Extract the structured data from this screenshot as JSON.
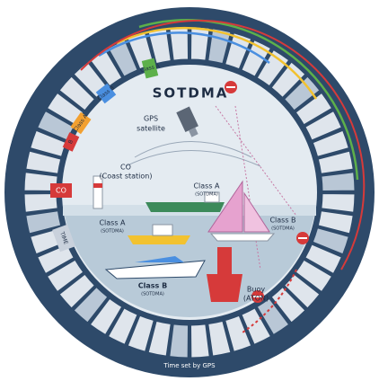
{
  "title": "SOTDMA",
  "footer": "Time set by GPS",
  "ring_labels": {
    "class_a_green": "Class A",
    "class_b_blue": "Class B",
    "class_a_orange": "Class A",
    "class_b_red": "B",
    "co": "CO",
    "time": "TIME"
  },
  "labels": {
    "gps": [
      "GPS",
      "satellite"
    ],
    "coast": [
      "CO",
      "(Coast station)"
    ],
    "ship_a": [
      "Class A",
      "(SOTDMA)"
    ],
    "boat_a": [
      "Class A",
      "(SOTDMA)"
    ],
    "sail_b": [
      "Class B",
      "(SOTDMA)"
    ],
    "motor_b": [
      "Class B",
      "(SOTDMA)"
    ],
    "buoy": [
      "Buoy",
      "(ATON)"
    ]
  }
}
